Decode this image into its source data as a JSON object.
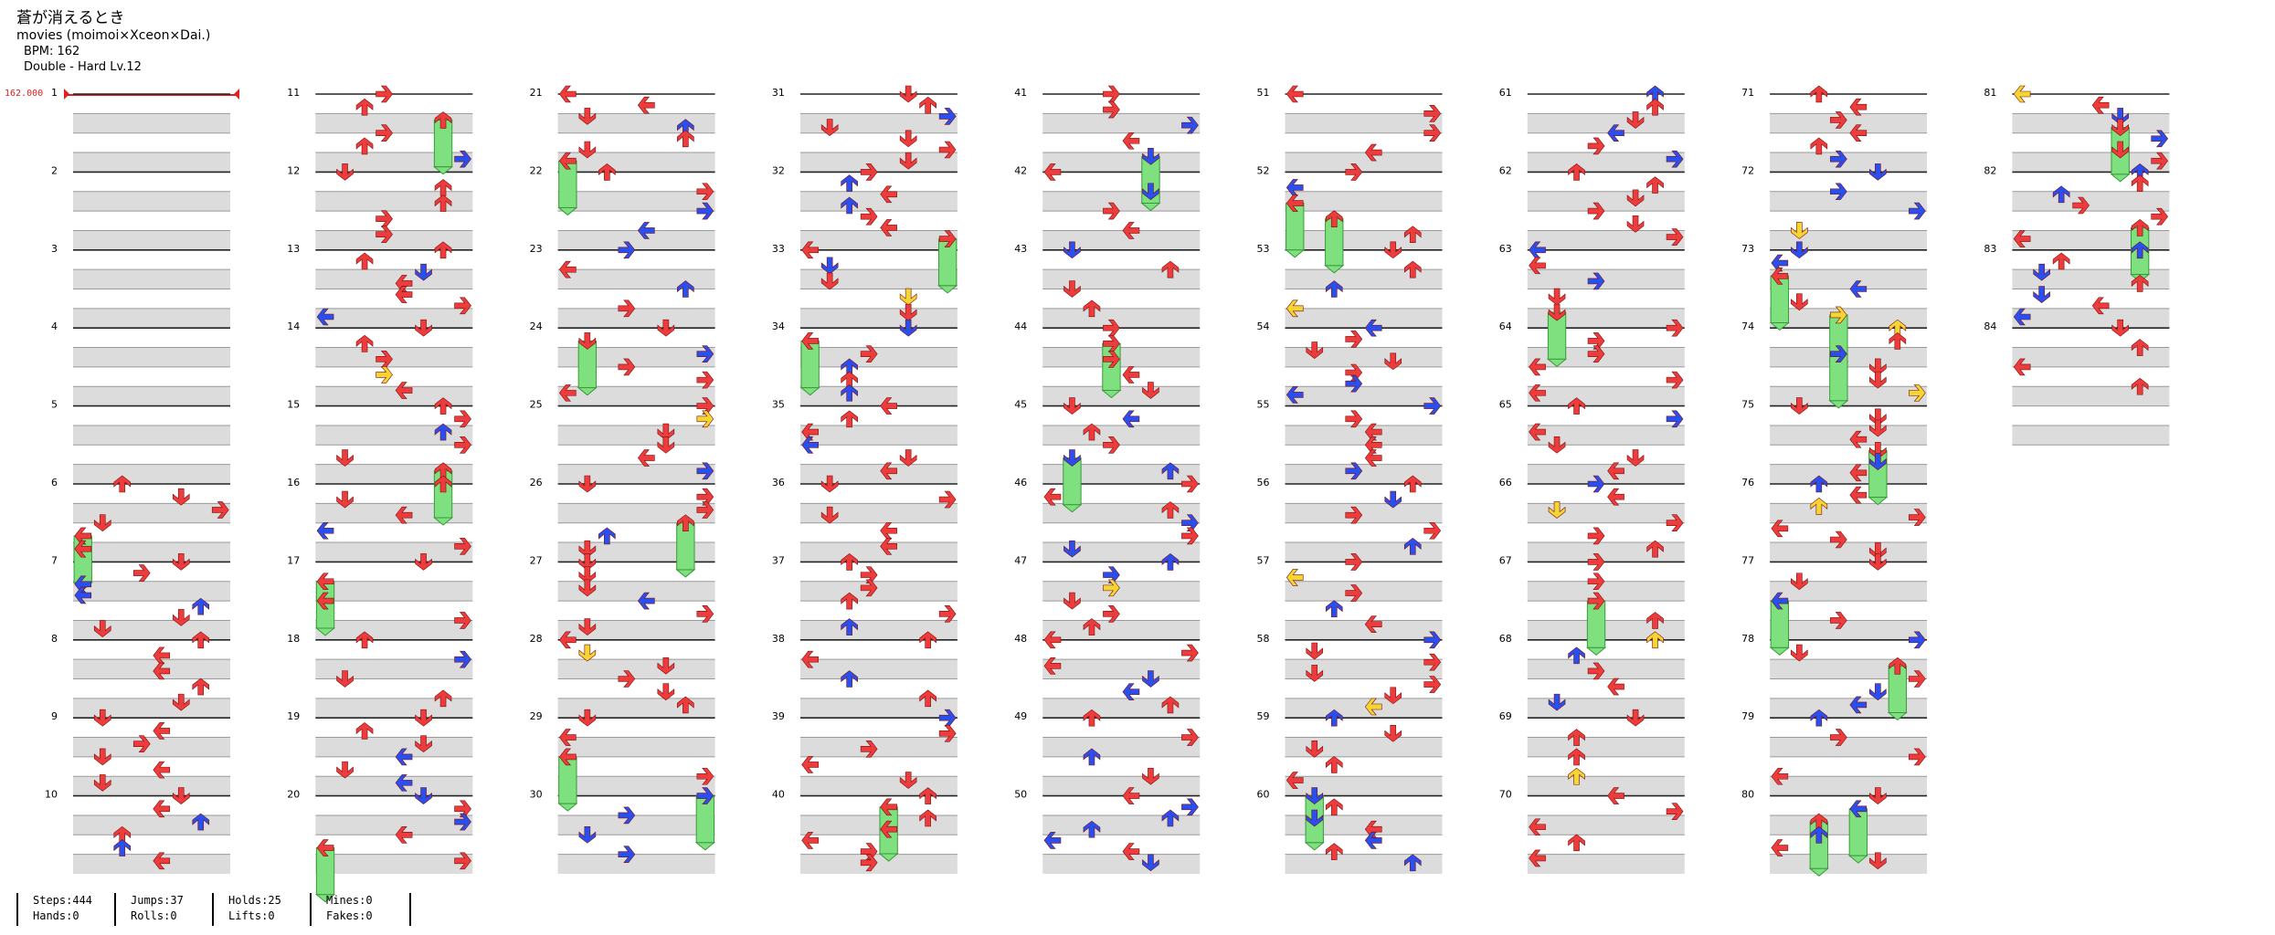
{
  "song": {
    "title": "蒼が消えるとき",
    "artist": "movies (moimoi×Xceon×Dai.)",
    "bpm_text": "BPM: 162",
    "difficulty_text": "Double - Hard  Lv.12"
  },
  "bpm_marker": "162.000",
  "measures_per_column": 10,
  "measure_count": 84,
  "colors": {
    "left": "#ee3b3b",
    "down": "#ee3b3b",
    "up": "#ee3b3b",
    "right": "#ee3b3b",
    "blue": "#2a4ff0",
    "yellow": "#f5d531",
    "hold": "#7ee07e"
  },
  "stats": [
    {
      "top": "Steps:444",
      "bottom": "Hands:0"
    },
    {
      "top": "Jumps:37",
      "bottom": "Rolls:0"
    },
    {
      "top": "Holds:25",
      "bottom": "Lifts:0"
    },
    {
      "top": "Mines:0",
      "bottom": "Fakes:0"
    }
  ]
}
